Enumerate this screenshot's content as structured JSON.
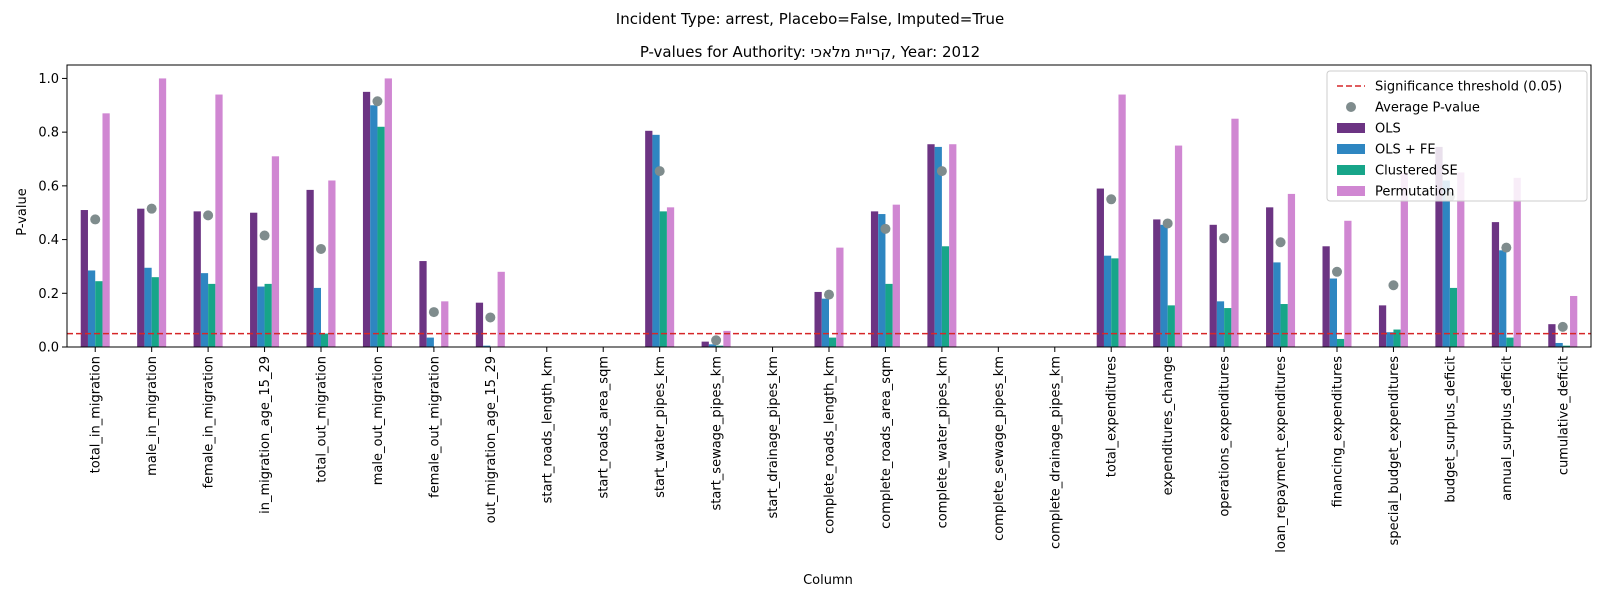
{
  "chart_data": {
    "type": "bar",
    "suptitle": "Incident Type: arrest, Placebo=False, Imputed=True",
    "title": "P-values for Authority: קריית מלאכי, Year: 2012",
    "xlabel": "Column",
    "ylabel": "P-value",
    "ylim": [
      0,
      1.05
    ],
    "yticks": [
      "0.0",
      "0.2",
      "0.4",
      "0.6",
      "0.8",
      "1.0"
    ],
    "legend_position": "top-right",
    "threshold": {
      "value": 0.05,
      "label": "Significance threshold (0.05)",
      "color": "#d62728"
    },
    "average_label": "Average P-value",
    "average_color": "#7f8c8d",
    "categories": [
      "total_in_migration",
      "male_in_migration",
      "female_in_migration",
      "in_migration_age_15_29",
      "total_out_migration",
      "male_out_migration",
      "female_out_migration",
      "out_migration_age_15_29",
      "start_roads_length_km",
      "start_roads_area_sqm",
      "start_water_pipes_km",
      "start_sewage_pipes_km",
      "start_drainage_pipes_km",
      "complete_roads_length_km",
      "complete_roads_area_sqm",
      "complete_water_pipes_km",
      "complete_sewage_pipes_km",
      "complete_drainage_pipes_km",
      "total_expenditures",
      "expenditures_change",
      "operations_expenditures",
      "loan_repayment_expenditures",
      "financing_expenditures",
      "special_budget_expenditures",
      "budget_surplus_deficit",
      "annual_surplus_deficit",
      "cumulative_deficit"
    ],
    "series": [
      {
        "name": "OLS",
        "color": "#6c3483",
        "values": [
          0.51,
          0.515,
          0.505,
          0.5,
          0.585,
          0.95,
          0.32,
          0.165,
          null,
          null,
          0.805,
          0.02,
          null,
          0.205,
          0.505,
          0.755,
          null,
          null,
          0.59,
          0.475,
          0.455,
          0.52,
          0.375,
          0.155,
          0.745,
          0.465,
          0.085
        ]
      },
      {
        "name": "OLS + FE",
        "color": "#2e86c1",
        "values": [
          0.285,
          0.295,
          0.275,
          0.225,
          0.22,
          0.9,
          0.035,
          0.005,
          null,
          null,
          0.79,
          0.01,
          null,
          0.18,
          0.495,
          0.745,
          null,
          null,
          0.34,
          0.455,
          0.17,
          0.315,
          0.255,
          0.055,
          0.62,
          0.36,
          0.015
        ]
      },
      {
        "name": "Clustered SE",
        "color": "#17a589",
        "values": [
          0.245,
          0.26,
          0.235,
          0.235,
          0.05,
          0.82,
          0.0,
          0.0,
          null,
          null,
          0.505,
          0.005,
          null,
          0.035,
          0.235,
          0.375,
          null,
          null,
          0.33,
          0.155,
          0.145,
          0.16,
          0.03,
          0.065,
          0.22,
          0.035,
          0.005
        ]
      },
      {
        "name": "Permutation",
        "color": "#d087d2",
        "values": [
          0.87,
          1.0,
          0.94,
          0.71,
          0.62,
          1.0,
          0.17,
          0.28,
          null,
          null,
          0.52,
          0.06,
          null,
          0.37,
          0.53,
          0.755,
          null,
          null,
          0.94,
          0.75,
          0.85,
          0.57,
          0.47,
          0.65,
          0.65,
          0.63,
          0.19
        ]
      }
    ],
    "averages": [
      0.475,
      0.515,
      0.49,
      0.415,
      0.365,
      0.915,
      0.13,
      0.11,
      null,
      null,
      0.655,
      0.025,
      null,
      0.195,
      0.44,
      0.655,
      null,
      null,
      0.55,
      0.46,
      0.405,
      0.39,
      0.28,
      0.23,
      0.56,
      0.37,
      0.075
    ]
  }
}
